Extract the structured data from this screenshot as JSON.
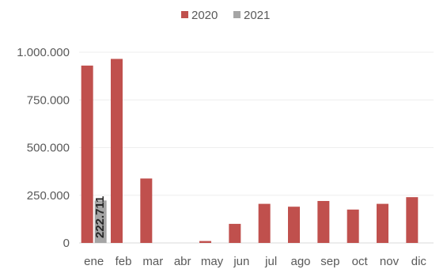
{
  "chart_data": {
    "type": "bar",
    "categories": [
      "ene",
      "feb",
      "mar",
      "abr",
      "may",
      "jun",
      "jul",
      "ago",
      "sep",
      "oct",
      "nov",
      "dic"
    ],
    "series": [
      {
        "name": "2020",
        "color": "#c0504d",
        "values": [
          930000,
          965000,
          338000,
          0,
          10000,
          100000,
          205000,
          190000,
          220000,
          175000,
          205000,
          240000
        ]
      },
      {
        "name": "2021",
        "color": "#a5a5a5",
        "values": [
          222711,
          null,
          null,
          null,
          null,
          null,
          null,
          null,
          null,
          null,
          null,
          null
        ],
        "data_labels": [
          "222.711",
          null,
          null,
          null,
          null,
          null,
          null,
          null,
          null,
          null,
          null,
          null
        ]
      }
    ],
    "yticks": [
      "0",
      "250.000",
      "500.000",
      "750.000",
      "1.000.000"
    ],
    "ylim": [
      0,
      1000000
    ],
    "grid": true,
    "legend": "top-center",
    "title": "",
    "xlabel": "",
    "ylabel": ""
  }
}
